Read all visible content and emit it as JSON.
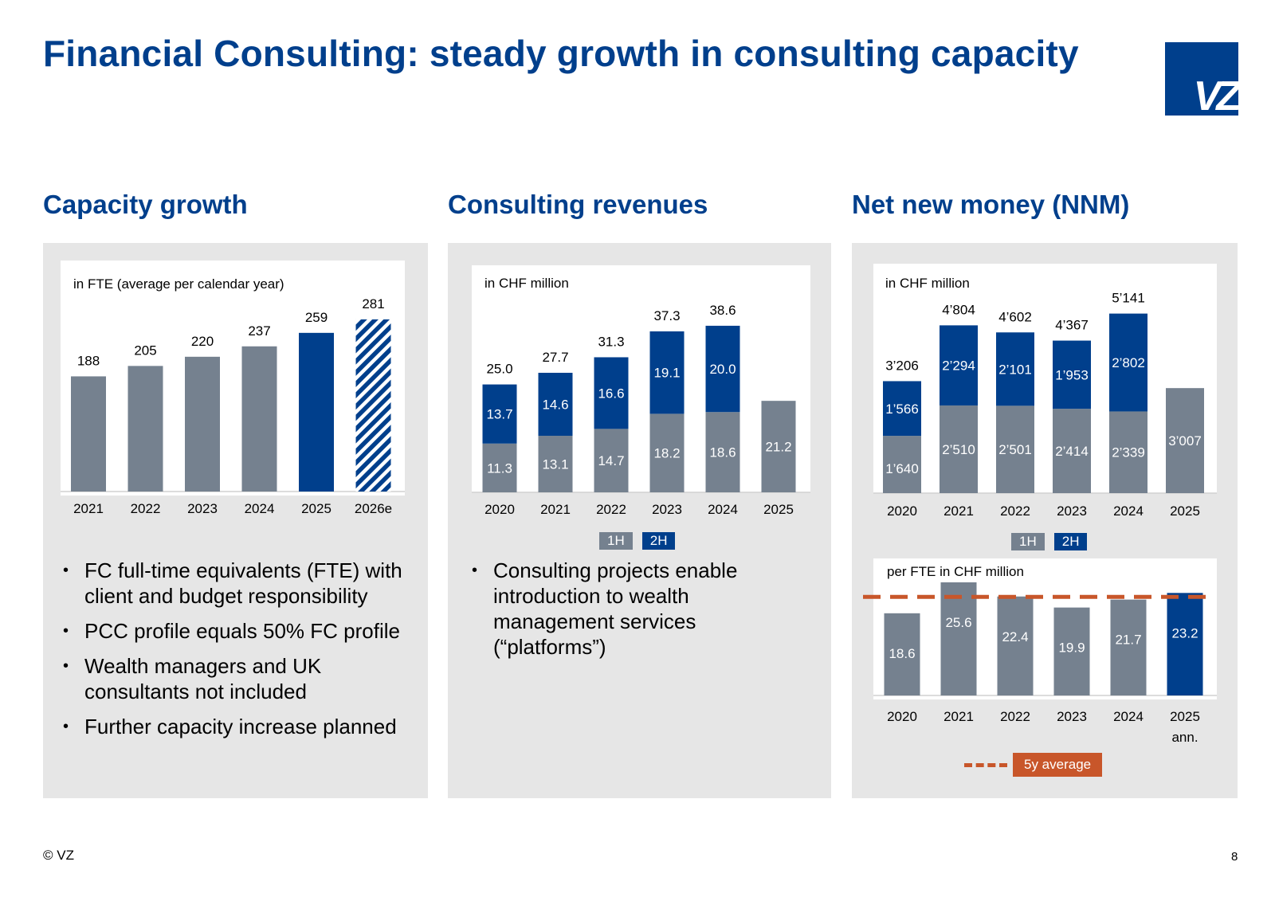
{
  "title": "Financial Consulting: steady growth in consulting capacity",
  "logo_text": "VZ",
  "colors": {
    "brand_blue": "#003f8c",
    "grey_bar": "#75818f",
    "accent_orange": "#c8562a",
    "panel_bg": "#e6e6e6"
  },
  "sections": {
    "capacity": {
      "title": "Capacity growth",
      "bullets": [
        "FC full-time equivalents (FTE) with client and budget responsibility",
        "PCC profile equals 50% FC profile",
        "Wealth managers and UK consultants not included",
        "Further capacity increase planned"
      ]
    },
    "revenues": {
      "title": "Consulting revenues",
      "bullets": [
        "Consulting projects enable introduction to wealth management services (“platforms”)"
      ],
      "legend": [
        "1H",
        "2H"
      ]
    },
    "nnm": {
      "title": "Net new money (NNM)",
      "legend": [
        "1H",
        "2H"
      ],
      "avg_legend": "5y average"
    }
  },
  "chart_data": [
    {
      "id": "capacity",
      "type": "bar",
      "title": "in FTE (average per calendar year)",
      "categories": [
        "2021",
        "2022",
        "2023",
        "2024",
        "2025",
        "2026e"
      ],
      "values": [
        188,
        205,
        220,
        237,
        259,
        281
      ],
      "value_labels": [
        "188",
        "205",
        "220",
        "237",
        "259",
        "281"
      ],
      "styles": [
        "grey",
        "grey",
        "grey",
        "grey",
        "blue",
        "hatched"
      ],
      "ylim": [
        0,
        290
      ]
    },
    {
      "id": "revenues",
      "type": "bar",
      "stacked": true,
      "title": "in CHF million",
      "categories": [
        "2020",
        "2021",
        "2022",
        "2023",
        "2024",
        "2025"
      ],
      "series": [
        {
          "name": "1H",
          "values": [
            11.3,
            13.1,
            14.7,
            18.2,
            18.6,
            21.2
          ],
          "labels": [
            "11.3",
            "13.1",
            "14.7",
            "18.2",
            "18.6",
            "21.2"
          ]
        },
        {
          "name": "2H",
          "values": [
            13.7,
            14.6,
            16.6,
            19.1,
            20.0,
            null
          ],
          "labels": [
            "13.7",
            "14.6",
            "16.6",
            "19.1",
            "20.0",
            ""
          ]
        }
      ],
      "totals": [
        "25.0",
        "27.7",
        "31.3",
        "37.3",
        "38.6",
        ""
      ],
      "ylim": [
        0,
        42
      ]
    },
    {
      "id": "nnm",
      "type": "bar",
      "stacked": true,
      "title": "in CHF million",
      "categories": [
        "2020",
        "2021",
        "2022",
        "2023",
        "2024",
        "2025"
      ],
      "series": [
        {
          "name": "1H",
          "values": [
            1640,
            2510,
            2501,
            2414,
            2339,
            3007
          ],
          "labels": [
            "1’640",
            "2’510",
            "2’501",
            "2’414",
            "2’339",
            "3’007"
          ]
        },
        {
          "name": "2H",
          "values": [
            1566,
            2294,
            2101,
            1953,
            2802,
            null
          ],
          "labels": [
            "1’566",
            "2’294",
            "2’101",
            "1’953",
            "2’802",
            ""
          ]
        }
      ],
      "totals": [
        "3’206",
        "4’804",
        "4’602",
        "4’367",
        "5’141",
        ""
      ],
      "ylim": [
        0,
        5600
      ]
    },
    {
      "id": "nnm_fte",
      "type": "bar",
      "title": "per FTE in CHF million",
      "categories": [
        "2020",
        "2021",
        "2022",
        "2023",
        "2024",
        "2025\nann."
      ],
      "values": [
        18.6,
        25.6,
        22.4,
        19.9,
        21.7,
        23.2
      ],
      "value_labels": [
        "18.6",
        "25.6",
        "22.4",
        "19.9",
        "21.7",
        "23.2"
      ],
      "styles": [
        "grey",
        "grey",
        "grey",
        "grey",
        "grey",
        "blue"
      ],
      "reference_line": {
        "name": "5y average",
        "value": 22.3
      },
      "ylim": [
        0,
        25.6
      ]
    }
  ],
  "footer": {
    "copyright": "© VZ",
    "page": "8"
  }
}
